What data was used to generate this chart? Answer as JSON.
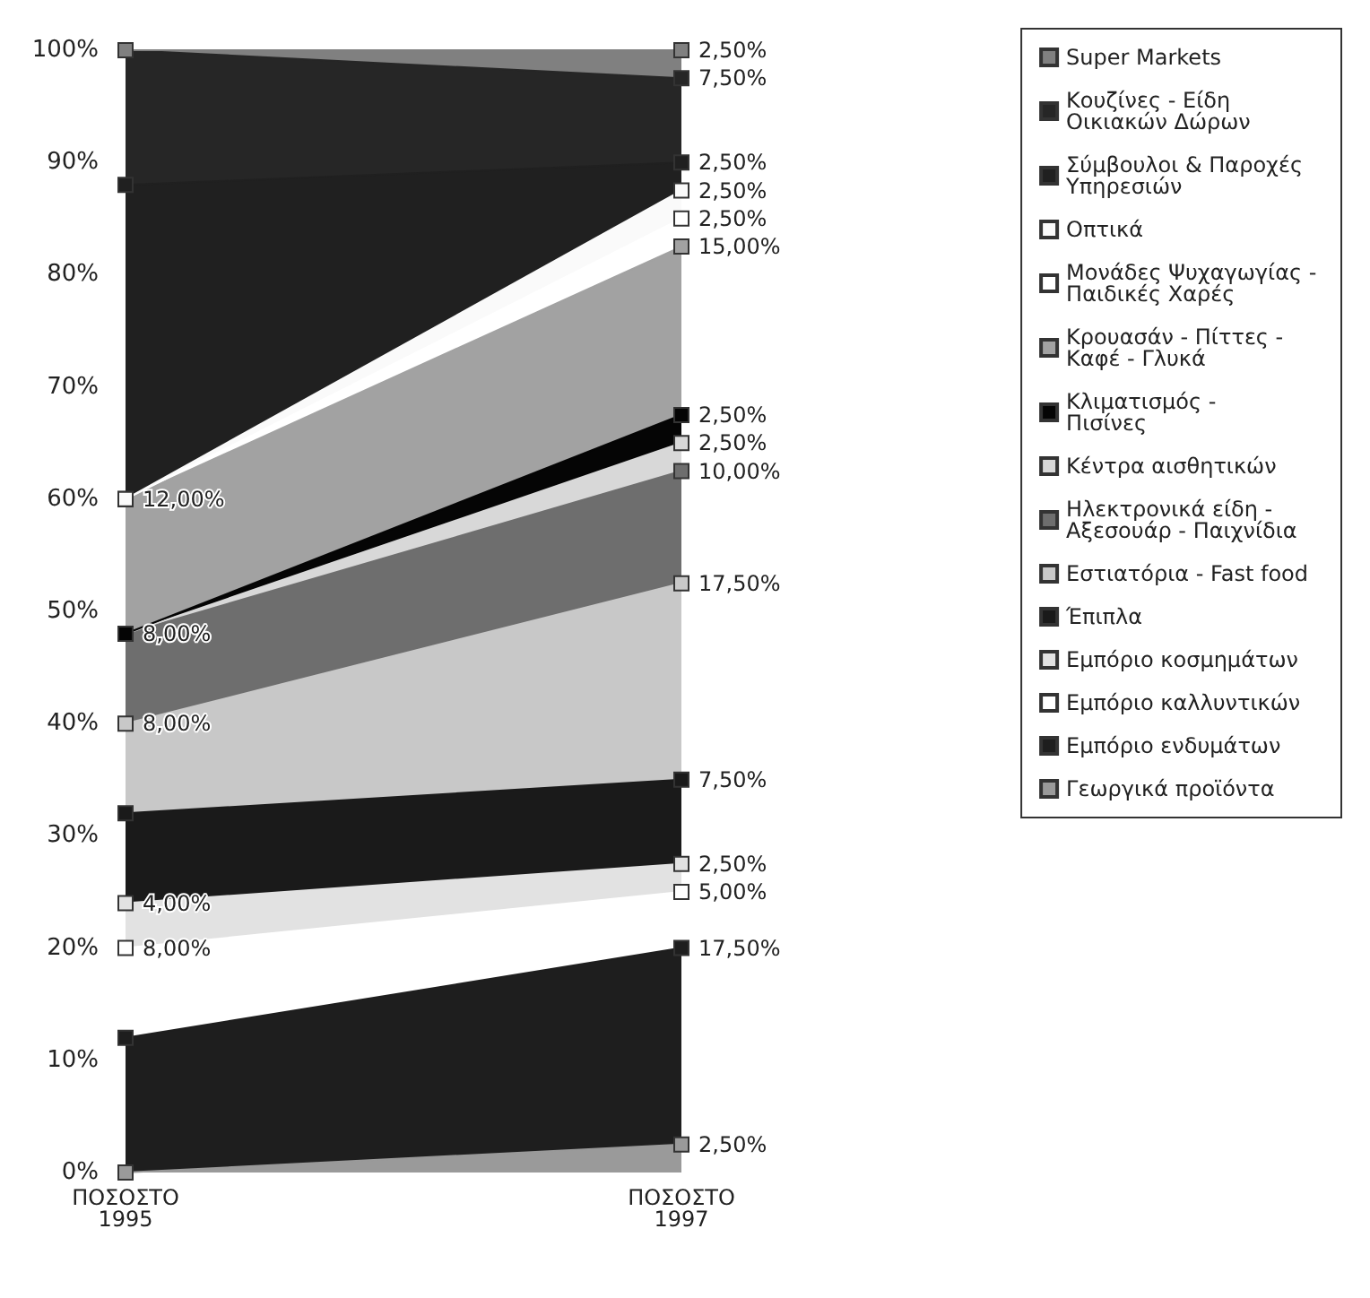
{
  "chart_data": {
    "type": "area",
    "stacked": true,
    "categories": [
      "ΠΟΣΟΣΤΟ\n1995",
      "ΠΟΣΟΣΤΟ\n1997"
    ],
    "ylim": [
      0,
      100
    ],
    "yticks": [
      {
        "value": 0,
        "label": "0%"
      },
      {
        "value": 10,
        "label": "10%"
      },
      {
        "value": 20,
        "label": "20%"
      },
      {
        "value": 30,
        "label": "30%"
      },
      {
        "value": 40,
        "label": "40%"
      },
      {
        "value": 50,
        "label": "50%"
      },
      {
        "value": 60,
        "label": "60%"
      },
      {
        "value": 70,
        "label": "70%"
      },
      {
        "value": 80,
        "label": "80%"
      },
      {
        "value": 90,
        "label": "90%"
      },
      {
        "value": 100,
        "label": "100%"
      }
    ],
    "grid": false,
    "legend": "right",
    "marker": "square",
    "series": [
      {
        "name": "Γεωργικά προϊόντα",
        "color": "#9a9a9a",
        "values": [
          0,
          2.5
        ],
        "value_labels": [
          null,
          "2,50%"
        ]
      },
      {
        "name": "Εμπόριο ενδυμάτων",
        "color": "#1e1e1e",
        "values": [
          12,
          17.5
        ],
        "value_labels": [
          null,
          "17,50%"
        ]
      },
      {
        "name": "Εμπόριο καλλυντικών",
        "color": "#ffffff",
        "values": [
          8,
          5
        ],
        "value_labels": [
          "8,00%",
          "5,00%"
        ]
      },
      {
        "name": "Εμπόριο κοσμημάτων",
        "color": "#e2e2e2",
        "values": [
          4,
          2.5
        ],
        "value_labels": [
          "4,00%",
          "2,50%"
        ]
      },
      {
        "name": "Έπιπλα",
        "color": "#1a1a1a",
        "values": [
          8,
          7.5
        ],
        "value_labels": [
          null,
          "7,50%"
        ]
      },
      {
        "name": "Εστιατόρια - Fast food",
        "color": "#c8c8c8",
        "values": [
          8,
          17.5
        ],
        "value_labels": [
          "8,00%",
          "17,50%"
        ]
      },
      {
        "name": "Ηλεκτρονικά είδη - Αξεσουάρ - Παιχνίδια",
        "color": "#6e6e6e",
        "values": [
          8,
          10
        ],
        "value_labels": [
          "8,00%",
          "10,00%"
        ]
      },
      {
        "name": "Κέντρα αισθητικών",
        "color": "#d8d8d8",
        "values": [
          0,
          2.5
        ],
        "value_labels": [
          null,
          "2,50%"
        ]
      },
      {
        "name": "Κλιματισμός - Πισίνες",
        "color": "#050505",
        "values": [
          0,
          2.5
        ],
        "value_labels": [
          null,
          "2,50%"
        ]
      },
      {
        "name": "Κρουασάν - Πίττες - Καφέ - Γλυκά",
        "color": "#a2a2a2",
        "values": [
          12,
          15
        ],
        "value_labels": [
          "12,00%",
          "15,00%"
        ]
      },
      {
        "name": "Μονάδες Ψυχαγωγίας - Παιδικές Χαρές",
        "color": "#ffffff",
        "values": [
          0,
          2.5
        ],
        "value_labels": [
          null,
          "2,50%"
        ]
      },
      {
        "name": "Οπτικά",
        "color": "#fafafa",
        "values": [
          0,
          2.5
        ],
        "value_labels": [
          null,
          "2,50%"
        ]
      },
      {
        "name": "Σύμβουλοι & Παροχές Υπηρεσιών",
        "color": "#202020",
        "values": [
          28,
          2.5
        ],
        "value_labels": [
          null,
          "2,50%"
        ]
      },
      {
        "name": "Κουζίνες - Είδη Οικιακών Δώρων",
        "color": "#262626",
        "values": [
          12,
          7.5
        ],
        "value_labels": [
          null,
          "7,50%"
        ]
      },
      {
        "name": "Super Markets",
        "color": "#808080",
        "values": [
          0,
          2.5
        ],
        "value_labels": [
          null,
          "2,50%"
        ]
      }
    ]
  }
}
